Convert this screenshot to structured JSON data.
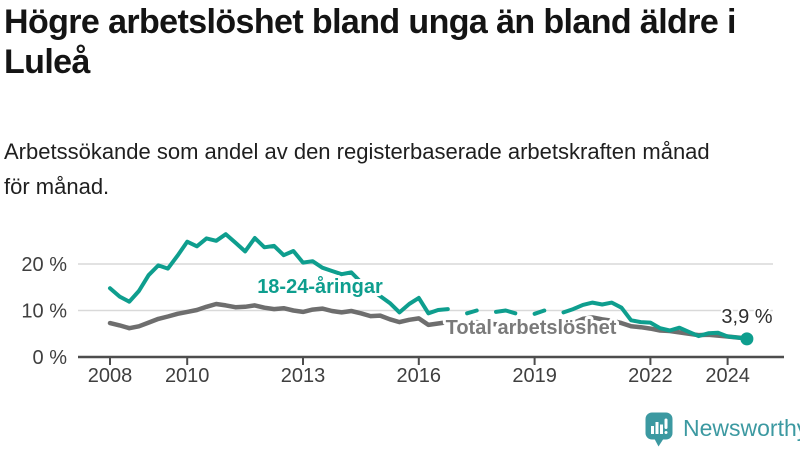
{
  "header": {
    "title_line1": "Högre arbetslöshet bland unga än bland äldre i",
    "title_line2": "Luleå",
    "subtitle_line1": "Arbetssökande som andel av den registerbaserade arbetskraften månad",
    "subtitle_line2": "för månad."
  },
  "branding": {
    "logo_text": "Newsworthy",
    "logo_icon": "bar-chart-speech-bubble-icon"
  },
  "colors": {
    "title": "#141414",
    "tick_label": "#3f3f3f",
    "axis": "#4d4d4d",
    "grid": "#d9d9d9",
    "youth_line": "#0e9e8e",
    "total_line": "#6e6e6e",
    "total_label": "#7a7a7a",
    "end_label": "#2e2e2e",
    "logo": "#3c99a1"
  },
  "chart_data": {
    "type": "line",
    "title": "Högre arbetslöshet bland unga än bland äldre i Luleå",
    "subtitle": "Arbetssökande som andel av den registerbaserade arbetskraften månad för månad.",
    "xlabel": "",
    "ylabel": "",
    "grid": true,
    "legend_position": "inline-labels",
    "x_unit": "year",
    "y_unit": "%",
    "x_start": 2008.0,
    "x_step": 0.25,
    "x_end": 2024.5,
    "xlim": [
      2007.3,
      2025.5
    ],
    "ylim": [
      0,
      27
    ],
    "x_ticks": [
      2008,
      2010,
      2013,
      2016,
      2019,
      2022,
      2024
    ],
    "y_ticks": [
      {
        "value": 0,
        "label": "0 %"
      },
      {
        "value": 10,
        "label": "10 %"
      },
      {
        "value": 20,
        "label": "20 %"
      }
    ],
    "end_point_label": "3,9 %",
    "end_point_value": 3.9,
    "series": [
      {
        "name": "18-24-åringar",
        "color": "#0e9e8e",
        "values": [
          14.8,
          13.0,
          11.9,
          14.2,
          17.6,
          19.7,
          19.0,
          21.8,
          24.8,
          23.8,
          25.5,
          25.0,
          26.4,
          24.6,
          22.7,
          25.6,
          23.6,
          23.9,
          21.9,
          22.8,
          20.3,
          20.6,
          19.2,
          18.5,
          17.8,
          18.2,
          16.1,
          14.6,
          13.1,
          11.6,
          9.6,
          11.4,
          12.7,
          9.4,
          10.1,
          10.3,
          null,
          9.4,
          10.0,
          null,
          9.7,
          10.0,
          9.4,
          null,
          9.3,
          10.0,
          null,
          9.6,
          10.3,
          11.2,
          11.7,
          11.3,
          11.7,
          10.6,
          7.9,
          7.5,
          7.4,
          6.2,
          5.7,
          6.3,
          5.4,
          4.5,
          5.1,
          5.2,
          4.4,
          4.2,
          3.9
        ]
      },
      {
        "name": "Total arbetslöshet",
        "color": "#6e6e6e",
        "values": [
          7.3,
          6.8,
          6.2,
          6.6,
          7.4,
          8.2,
          8.7,
          9.3,
          9.7,
          10.1,
          10.8,
          11.4,
          11.1,
          10.7,
          10.8,
          11.1,
          10.6,
          10.3,
          10.5,
          10.0,
          9.7,
          10.2,
          10.4,
          9.9,
          9.6,
          9.9,
          9.4,
          8.8,
          8.9,
          8.1,
          7.5,
          8.0,
          8.3,
          6.9,
          7.2,
          7.5,
          7.4,
          7.2,
          7.5,
          7.3,
          7.0,
          7.3,
          7.1,
          6.9,
          6.9,
          7.2,
          7.0,
          7.1,
          7.3,
          8.2,
          8.5,
          8.1,
          7.8,
          7.3,
          6.6,
          6.4,
          6.1,
          5.7,
          5.6,
          5.3,
          5.0,
          4.7,
          4.8,
          4.6,
          4.4,
          4.2,
          4.0
        ]
      }
    ]
  }
}
